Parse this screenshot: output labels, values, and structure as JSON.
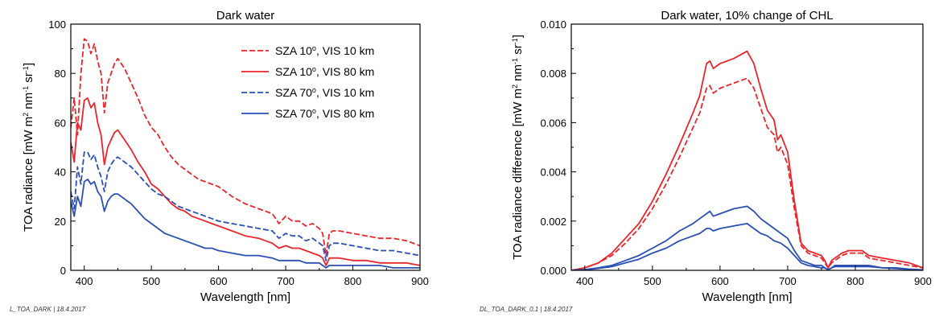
{
  "chart_data": [
    {
      "type": "line",
      "title": "Dark water",
      "xlabel": "Wavelength [nm]",
      "ylabel": "TOA radiance [mW m",
      "ylabel_sup1": "2",
      "ylabel_mid": " nm",
      "ylabel_sup2": "-1",
      "ylabel_mid2": " sr",
      "ylabel_sup3": "-1",
      "ylabel_end": "]",
      "xlim": [
        380,
        900
      ],
      "ylim": [
        0,
        100
      ],
      "xticks": [
        "400",
        "500",
        "600",
        "700",
        "800",
        "900"
      ],
      "yticks": [
        "0",
        "20",
        "40",
        "60",
        "80",
        "100"
      ],
      "legend_placement": "top-right",
      "footer": "L_TOA_DARK | 18.4.2017",
      "series": [
        {
          "name_pre": "SZA 10",
          "name_sup": "o",
          "name_post": ", VIS 10 km",
          "color": "#e8262b",
          "dash": true,
          "x": [
            380,
            385,
            390,
            395,
            400,
            405,
            410,
            415,
            420,
            425,
            430,
            435,
            440,
            445,
            450,
            460,
            470,
            480,
            490,
            500,
            510,
            520,
            530,
            540,
            550,
            560,
            570,
            580,
            590,
            600,
            620,
            640,
            660,
            680,
            690,
            700,
            710,
            720,
            730,
            740,
            750,
            755,
            760,
            765,
            770,
            780,
            800,
            820,
            840,
            860,
            880,
            900
          ],
          "y": [
            58,
            70,
            55,
            80,
            94,
            93,
            88,
            92,
            85,
            80,
            64,
            76,
            80,
            84,
            86,
            82,
            76,
            70,
            63,
            58,
            55,
            50,
            46,
            43,
            41,
            39,
            37,
            36,
            35,
            34,
            30,
            27,
            25,
            23,
            19,
            22,
            20,
            20,
            18,
            19,
            17,
            15,
            6,
            15,
            16,
            16,
            15,
            14,
            13,
            13,
            12,
            10
          ]
        },
        {
          "name_pre": "SZA 10",
          "name_sup": "o",
          "name_post": ", VIS 80 km",
          "color": "#e8262b",
          "dash": false,
          "x": [
            380,
            385,
            390,
            395,
            400,
            405,
            410,
            415,
            420,
            425,
            430,
            435,
            440,
            445,
            450,
            460,
            470,
            480,
            490,
            500,
            510,
            520,
            530,
            540,
            550,
            560,
            570,
            580,
            590,
            600,
            620,
            640,
            660,
            680,
            690,
            700,
            710,
            720,
            730,
            740,
            750,
            755,
            760,
            765,
            770,
            780,
            800,
            820,
            840,
            860,
            880,
            900
          ],
          "y": [
            52,
            44,
            60,
            57,
            69,
            70,
            66,
            68,
            60,
            55,
            43,
            50,
            53,
            56,
            57,
            53,
            49,
            44,
            40,
            35,
            33,
            30,
            27,
            25,
            24,
            22,
            21,
            20,
            19,
            18,
            16,
            14,
            13,
            11,
            9,
            10,
            9,
            9,
            8,
            7,
            6,
            5,
            2,
            5,
            5,
            5,
            4,
            4,
            3,
            3,
            3,
            2
          ]
        },
        {
          "name_pre": "SZA 70",
          "name_sup": "o",
          "name_post": ", VIS 10 km",
          "color": "#2b4fb4",
          "dash": true,
          "x": [
            380,
            385,
            390,
            395,
            400,
            405,
            410,
            415,
            420,
            425,
            430,
            435,
            440,
            445,
            450,
            460,
            470,
            480,
            490,
            500,
            510,
            520,
            530,
            540,
            550,
            560,
            570,
            580,
            590,
            600,
            620,
            640,
            660,
            680,
            690,
            700,
            710,
            720,
            730,
            740,
            750,
            755,
            760,
            765,
            770,
            780,
            800,
            820,
            840,
            860,
            880,
            900
          ],
          "y": [
            32,
            25,
            42,
            35,
            48,
            48,
            45,
            47,
            42,
            38,
            32,
            40,
            43,
            45,
            46,
            44,
            42,
            39,
            36,
            33,
            31,
            30,
            28,
            26,
            25,
            24,
            23,
            22,
            21,
            20,
            19,
            18,
            17,
            16,
            13,
            15,
            14,
            14,
            12,
            13,
            11,
            10,
            4,
            10,
            11,
            11,
            10,
            9,
            8,
            8,
            7,
            6
          ]
        },
        {
          "name_pre": "SZA 70",
          "name_sup": "o",
          "name_post": ", VIS 80 km",
          "color": "#2b4fb4",
          "dash": false,
          "x": [
            380,
            385,
            390,
            395,
            400,
            405,
            410,
            415,
            420,
            425,
            430,
            435,
            440,
            445,
            450,
            460,
            470,
            480,
            490,
            500,
            510,
            520,
            530,
            540,
            550,
            560,
            570,
            580,
            590,
            600,
            620,
            640,
            660,
            680,
            690,
            700,
            710,
            720,
            730,
            740,
            750,
            755,
            760,
            765,
            770,
            780,
            800,
            820,
            840,
            860,
            880,
            900
          ],
          "y": [
            28,
            22,
            30,
            26,
            36,
            37,
            35,
            36,
            32,
            30,
            24,
            28,
            30,
            31,
            31,
            29,
            27,
            24,
            21,
            19,
            17,
            15,
            14,
            13,
            12,
            11,
            10,
            9,
            9,
            8,
            7,
            6,
            6,
            5,
            4,
            4,
            4,
            4,
            3,
            3,
            3,
            2,
            1,
            2,
            2,
            2,
            2,
            2,
            2,
            1,
            1,
            1
          ]
        }
      ]
    },
    {
      "type": "line",
      "title": "Dark water, 10% change of CHL",
      "xlabel": "Wavelength [nm]",
      "ylabel": "TOA radiance difference [mW m",
      "ylabel_sup1": "2",
      "ylabel_mid": " nm",
      "ylabel_sup2": "-1",
      "ylabel_mid2": " sr",
      "ylabel_sup3": "-1",
      "ylabel_end": "]",
      "xlim": [
        380,
        900
      ],
      "ylim": [
        0,
        0.01
      ],
      "xticks": [
        "400",
        "500",
        "600",
        "700",
        "800",
        "900"
      ],
      "yticks": [
        "0.000",
        "0.002",
        "0.004",
        "0.006",
        "0.008",
        "0.010"
      ],
      "footer": "DL_TOA_DARK_0.1 | 18.4.2017",
      "series": [
        {
          "color": "#e8262b",
          "dash": true,
          "x": [
            380,
            400,
            420,
            440,
            460,
            480,
            500,
            520,
            540,
            560,
            570,
            580,
            585,
            590,
            600,
            620,
            640,
            650,
            660,
            670,
            680,
            685,
            690,
            700,
            710,
            720,
            730,
            740,
            750,
            755,
            760,
            765,
            770,
            780,
            790,
            800,
            810,
            820,
            840,
            860,
            880,
            900
          ],
          "y": [
            0,
            0.0001,
            0.0003,
            0.0006,
            0.0011,
            0.0017,
            0.0025,
            0.0035,
            0.0046,
            0.0058,
            0.0064,
            0.0074,
            0.0075,
            0.0072,
            0.0074,
            0.0076,
            0.0078,
            0.0074,
            0.0066,
            0.0058,
            0.0055,
            0.0048,
            0.005,
            0.0043,
            0.0025,
            0.001,
            0.0007,
            0.0006,
            0.0005,
            0.0003,
            0.0001,
            0.0003,
            0.0004,
            0.0006,
            0.0007,
            0.0007,
            0.0007,
            0.0005,
            0.0004,
            0.0003,
            0.0002,
            0.0001
          ]
        },
        {
          "color": "#e8262b",
          "dash": false,
          "x": [
            380,
            400,
            420,
            440,
            460,
            480,
            500,
            520,
            540,
            560,
            570,
            580,
            585,
            590,
            600,
            620,
            640,
            650,
            660,
            670,
            680,
            685,
            690,
            700,
            710,
            720,
            730,
            740,
            750,
            755,
            760,
            765,
            770,
            780,
            790,
            800,
            810,
            820,
            840,
            860,
            880,
            900
          ],
          "y": [
            0,
            0.0001,
            0.0003,
            0.0007,
            0.0013,
            0.0019,
            0.0028,
            0.0039,
            0.0051,
            0.0064,
            0.0071,
            0.0084,
            0.0085,
            0.0082,
            0.0084,
            0.0086,
            0.0089,
            0.0084,
            0.0074,
            0.0065,
            0.0061,
            0.0053,
            0.0055,
            0.0048,
            0.0028,
            0.0011,
            0.0008,
            0.0007,
            0.0006,
            0.0004,
            0.0001,
            0.0004,
            0.0005,
            0.0007,
            0.0008,
            0.0008,
            0.0008,
            0.0006,
            0.0005,
            0.0004,
            0.0003,
            0.0001
          ]
        },
        {
          "color": "#2b4fb4",
          "dash": false,
          "x": [
            380,
            400,
            420,
            440,
            460,
            480,
            500,
            520,
            540,
            560,
            570,
            580,
            585,
            590,
            600,
            620,
            640,
            650,
            660,
            670,
            680,
            690,
            700,
            710,
            720,
            730,
            740,
            750,
            755,
            760,
            765,
            770,
            780,
            800,
            820,
            840,
            860,
            880,
            900
          ],
          "y": [
            0,
            3e-05,
            0.0001,
            0.0002,
            0.0004,
            0.0006,
            0.0009,
            0.0012,
            0.0016,
            0.0019,
            0.0021,
            0.0023,
            0.0024,
            0.0022,
            0.0023,
            0.0025,
            0.0026,
            0.0024,
            0.0021,
            0.0019,
            0.0017,
            0.0015,
            0.0013,
            0.0008,
            0.0004,
            0.0003,
            0.0002,
            0.0002,
            0.0001,
            3e-05,
            0.0001,
            0.0002,
            0.0002,
            0.0002,
            0.0002,
            0.0001,
            0.0001,
            5e-05,
            2e-05
          ]
        },
        {
          "color": "#2b4fb4",
          "dash": false,
          "x": [
            380,
            400,
            420,
            440,
            460,
            480,
            500,
            520,
            540,
            560,
            570,
            580,
            585,
            590,
            600,
            620,
            640,
            650,
            660,
            670,
            680,
            690,
            700,
            710,
            720,
            730,
            740,
            750,
            755,
            760,
            765,
            770,
            780,
            800,
            820,
            840,
            860,
            880,
            900
          ],
          "y": [
            0,
            2e-05,
            8e-05,
            0.00015,
            0.0003,
            0.00045,
            0.0007,
            0.0009,
            0.0012,
            0.0014,
            0.0015,
            0.0017,
            0.0017,
            0.0016,
            0.0017,
            0.0018,
            0.0019,
            0.0017,
            0.0015,
            0.0014,
            0.0012,
            0.0011,
            0.0009,
            0.0006,
            0.0003,
            0.0002,
            0.00015,
            0.0001,
            0.0001,
            2e-05,
            0.0001,
            0.00015,
            0.00015,
            0.00015,
            0.00015,
            0.0001,
            7e-05,
            4e-05,
            1e-05
          ]
        }
      ]
    }
  ]
}
